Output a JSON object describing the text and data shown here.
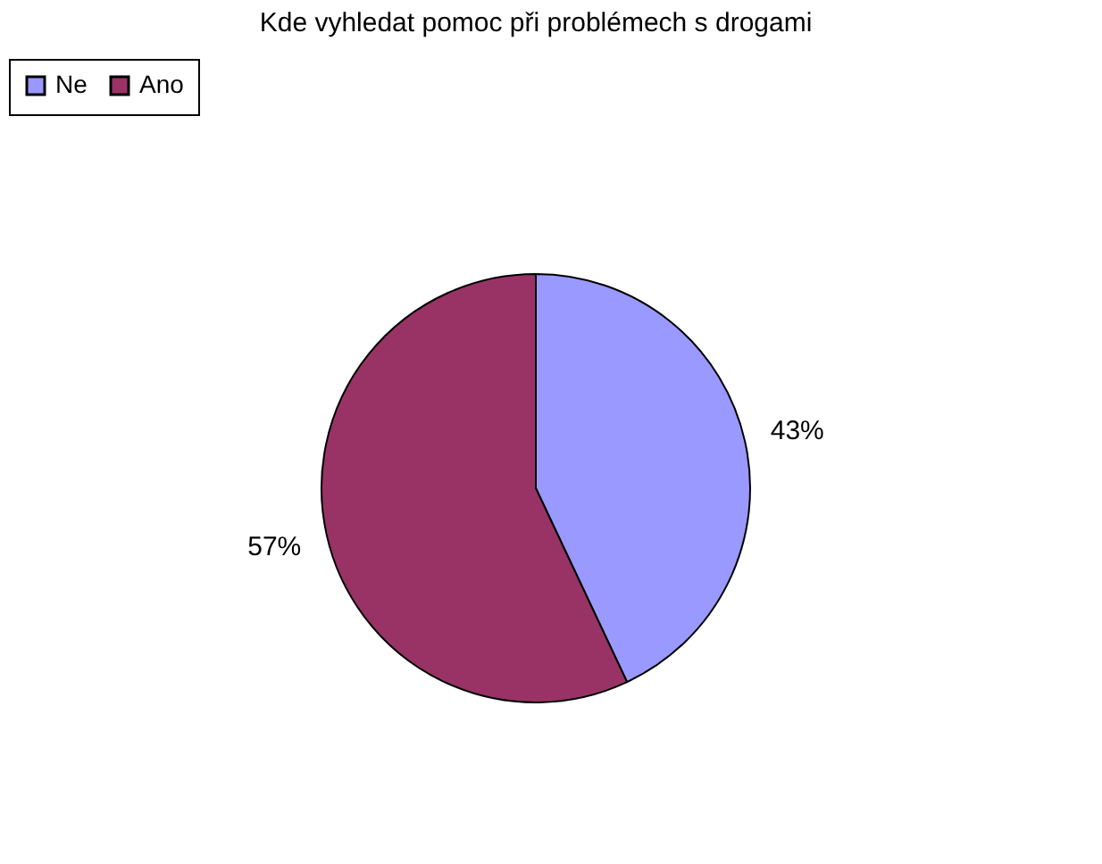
{
  "chart_data": {
    "type": "pie",
    "title": "Kde vyhledat pomoc při problémech s drogami",
    "categories": [
      "Ne",
      "Ano"
    ],
    "values": [
      43,
      57
    ],
    "colors": [
      "#9999ff",
      "#993366"
    ],
    "value_labels": [
      "43%",
      "57%"
    ],
    "legend": "top"
  }
}
